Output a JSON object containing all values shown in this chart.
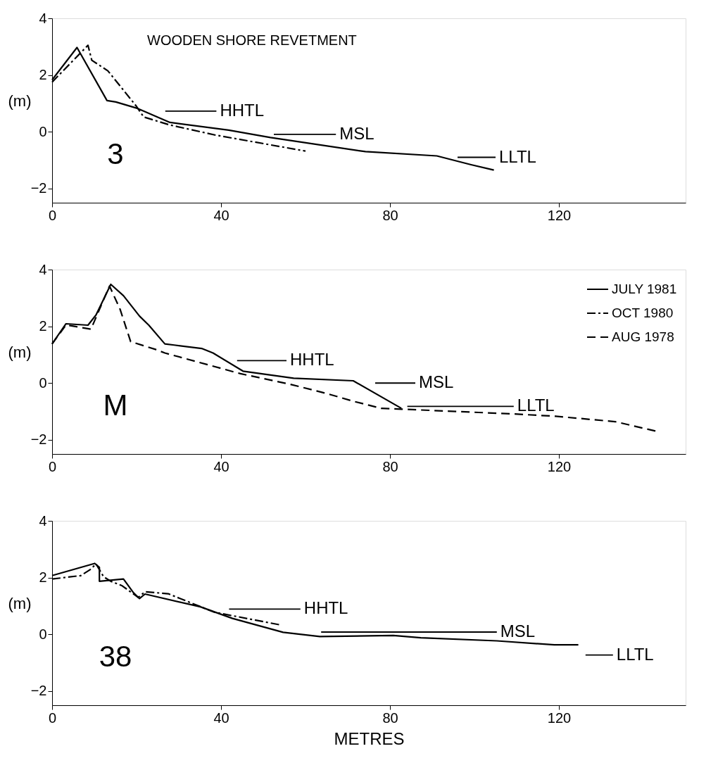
{
  "chart_data": [
    {
      "type": "line",
      "title": "3",
      "ylabel": "(m)",
      "xlim": [
        0,
        150
      ],
      "ylim": [
        -2.5,
        4
      ],
      "xticks": [
        0,
        40,
        80,
        120
      ],
      "yticks": [
        -2,
        0,
        2,
        4
      ],
      "grid": false,
      "legend": false,
      "marker": "none",
      "series": [
        {
          "color": "#000000",
          "line_style": "solid",
          "x": [
            0,
            5.9,
            13,
            15.1,
            20.3,
            27.9,
            41.8,
            51.7,
            74.2,
            91.1,
            99.2,
            104.6
          ],
          "values": [
            1.83,
            2.97,
            1.1,
            1.05,
            0.82,
            0.33,
            0.06,
            -0.2,
            -0.7,
            -0.85,
            -1.16,
            -1.35
          ]
        },
        {
          "color": "#000000",
          "line_style": "dashdot",
          "x": [
            0,
            8.5,
            9.4,
            13.2,
            19.8,
            21.7,
            27.9,
            38.8,
            60
          ],
          "values": [
            1.75,
            3.05,
            2.52,
            2.15,
            0.93,
            0.52,
            0.24,
            -0.12,
            -0.68
          ]
        },
        {
          "name": "HHTL",
          "type": "line",
          "color": "#000000",
          "line_style": "solid",
          "x": [
            26.8,
            38.9
          ],
          "values": [
            0.73,
            0.73
          ]
        },
        {
          "name": "MSL",
          "type": "line",
          "color": "#000000",
          "line_style": "solid",
          "x": [
            52.5,
            67.2
          ],
          "values": [
            -0.09,
            -0.09
          ]
        },
        {
          "name": "LLTL",
          "type": "line",
          "color": "#000000",
          "line_style": "solid",
          "x": [
            96,
            105
          ],
          "values": [
            -0.9,
            -0.9
          ]
        }
      ],
      "annotations": [
        "WOODEN SHORE REVETMENT"
      ]
    },
    {
      "type": "line",
      "title": "M",
      "ylabel": "(m)",
      "xlim": [
        0,
        150
      ],
      "ylim": [
        -2.5,
        4
      ],
      "xticks": [
        0,
        40,
        80,
        120
      ],
      "yticks": [
        -2,
        0,
        2,
        4
      ],
      "grid": false,
      "legend": "top right",
      "marker": "none",
      "series": [
        {
          "name": "JULY 1981",
          "color": "#000000",
          "line_style": "solid",
          "x": [
            0,
            3.3,
            8.5,
            10.4,
            13.9,
            16.9,
            20.7,
            22.9,
            26.7,
            28.9,
            35.4,
            38.1,
            45.2,
            57.2,
            71.3,
            82.7
          ],
          "values": [
            1.38,
            2.09,
            2.04,
            2.4,
            3.48,
            3.08,
            2.36,
            2.04,
            1.38,
            1.34,
            1.22,
            1.06,
            0.42,
            0.17,
            0.08,
            -0.89
          ]
        },
        {
          "name": "OCT 1980",
          "color": "#000000",
          "line_style": "dashdot"
        },
        {
          "name": "AUG 1978",
          "color": "#000000",
          "line_style": "dashed",
          "x": [
            0,
            3.3,
            9.2,
            13.6,
            16.1,
            18.6,
            24.6,
            26.7,
            44.6,
            56,
            64.8,
            71.3,
            77.9,
            82.7,
            109.4,
            119.2,
            133.3,
            143.1
          ],
          "values": [
            1.38,
            2.05,
            1.9,
            3.42,
            2.6,
            1.46,
            1.18,
            1.06,
            0.33,
            -0.03,
            -0.36,
            -0.64,
            -0.89,
            -0.92,
            -1.09,
            -1.17,
            -1.36,
            -1.7
          ]
        },
        {
          "name": "HHTL",
          "type": "line",
          "color": "#000000",
          "line_style": "solid",
          "x": [
            43.8,
            55.5
          ],
          "values": [
            0.79,
            0.79
          ]
        },
        {
          "name": "MSL",
          "type": "line",
          "color": "#000000",
          "line_style": "solid",
          "x": [
            76.5,
            86
          ],
          "values": [
            0,
            0
          ]
        },
        {
          "name": "LLTL",
          "type": "line",
          "color": "#000000",
          "line_style": "solid",
          "x": [
            84.1,
            109.3
          ],
          "values": [
            -0.82,
            -0.82
          ]
        }
      ]
    },
    {
      "type": "line",
      "title": "38",
      "xlabel": "METRES",
      "ylabel": "(m)",
      "xlim": [
        0,
        150
      ],
      "ylim": [
        -2.5,
        4
      ],
      "xticks": [
        0,
        40,
        80,
        120
      ],
      "yticks": [
        -2,
        0,
        2,
        4
      ],
      "grid": false,
      "legend": false,
      "marker": "none",
      "series": [
        {
          "color": "#000000",
          "line_style": "solid",
          "x": [
            0,
            10.1,
            11.2,
            11.2,
            16.9,
            19.3,
            20.7,
            22,
            35.1,
            42.7,
            54.7,
            63.4,
            80.8,
            87.3,
            105.3,
            118.9,
            124.6
          ],
          "values": [
            2.07,
            2.5,
            2.36,
            1.87,
            1.95,
            1.46,
            1.26,
            1.42,
            0.97,
            0.56,
            0.07,
            -0.08,
            -0.04,
            -0.12,
            -0.23,
            -0.37,
            -0.37
          ]
        },
        {
          "color": "#000000",
          "line_style": "dashdot",
          "x": [
            0,
            6.8,
            9,
            10.4,
            12.2,
            13.9,
            16.6,
            20.4,
            22,
            27.5,
            38.4,
            54.1
          ],
          "values": [
            1.95,
            2.07,
            2.28,
            2.48,
            2.03,
            1.87,
            1.71,
            1.3,
            1.5,
            1.43,
            0.78,
            0.33
          ]
        },
        {
          "name": "HHTL",
          "type": "line",
          "color": "#000000",
          "line_style": "solid",
          "x": [
            41.9,
            58.8
          ],
          "values": [
            0.89,
            0.89
          ]
        },
        {
          "name": "MSL",
          "type": "line",
          "color": "#000000",
          "line_style": "solid",
          "x": [
            63.7,
            105.3
          ],
          "values": [
            0.08,
            0.08
          ]
        },
        {
          "name": "LLTL",
          "type": "line",
          "color": "#000000",
          "line_style": "solid",
          "x": [
            126.3,
            132.8
          ],
          "values": [
            -0.73,
            -0.73
          ]
        }
      ]
    }
  ]
}
